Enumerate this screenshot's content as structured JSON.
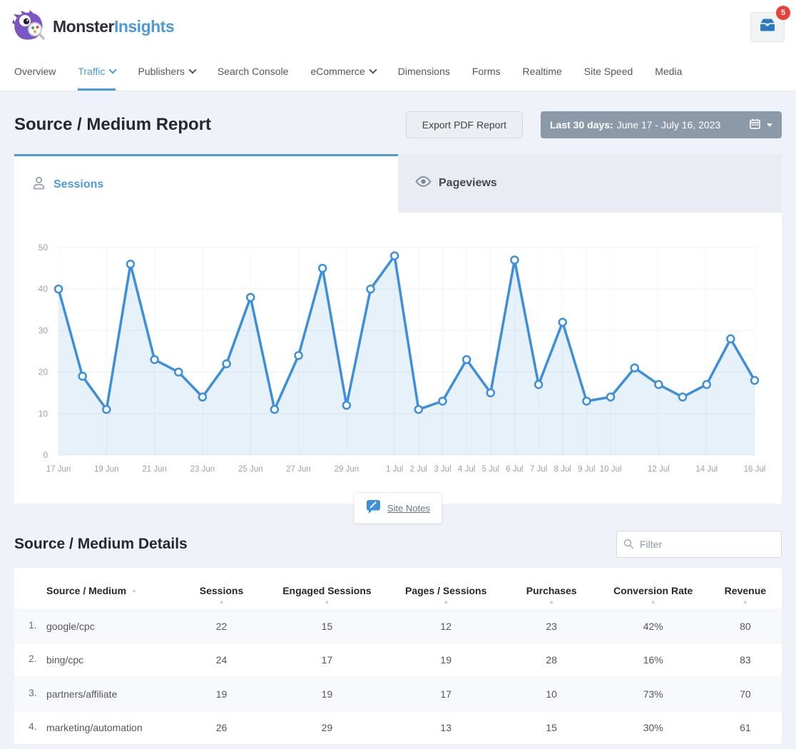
{
  "header": {
    "brand": {
      "monster": "Monster",
      "insights": "Insights"
    },
    "notifications": {
      "count": "5"
    }
  },
  "nav": {
    "items": [
      {
        "label": "Overview",
        "dropdown": false,
        "active": false
      },
      {
        "label": "Traffic",
        "dropdown": true,
        "active": true
      },
      {
        "label": "Publishers",
        "dropdown": true,
        "active": false
      },
      {
        "label": "Search Console",
        "dropdown": false,
        "active": false
      },
      {
        "label": "eCommerce",
        "dropdown": true,
        "active": false
      },
      {
        "label": "Dimensions",
        "dropdown": false,
        "active": false
      },
      {
        "label": "Forms",
        "dropdown": false,
        "active": false
      },
      {
        "label": "Realtime",
        "dropdown": false,
        "active": false
      },
      {
        "label": "Site Speed",
        "dropdown": false,
        "active": false
      },
      {
        "label": "Media",
        "dropdown": false,
        "active": false
      }
    ]
  },
  "report": {
    "title": "Source / Medium Report",
    "export_button": "Export PDF Report",
    "date_range": {
      "label": "Last 30 days:",
      "value": "June 17 - July 16, 2023"
    }
  },
  "tabs": [
    {
      "label": "Sessions",
      "icon": "user-icon",
      "active": true
    },
    {
      "label": "Pageviews",
      "icon": "eye-icon",
      "active": false
    }
  ],
  "chart_data": {
    "type": "line",
    "title": "Sessions",
    "x": [
      "17 Jun",
      "18 Jun",
      "19 Jun",
      "20 Jun",
      "21 Jun",
      "22 Jun",
      "23 Jun",
      "24 Jun",
      "25 Jun",
      "26 Jun",
      "27 Jun",
      "28 Jun",
      "29 Jun",
      "30 Jun",
      "1 Jul",
      "2 Jul",
      "3 Jul",
      "4 Jul",
      "5 Jul",
      "6 Jul",
      "7 Jul",
      "8 Jul",
      "9 Jul",
      "10 Jul",
      "11 Jul",
      "12 Jul",
      "13 Jul",
      "14 Jul",
      "15 Jul",
      "16 Jul"
    ],
    "series": [
      {
        "name": "Sessions",
        "values": [
          40,
          19,
          11,
          46,
          23,
          20,
          14,
          22,
          38,
          11,
          24,
          45,
          12,
          40,
          48,
          11,
          13,
          23,
          15,
          47,
          17,
          32,
          13,
          14,
          21,
          17,
          14,
          17,
          28,
          18
        ]
      }
    ],
    "x_tick_labels": [
      "17 Jun",
      "19 Jun",
      "21 Jun",
      "23 Jun",
      "25 Jun",
      "27 Jun",
      "29 Jun",
      "1 Jul",
      "2 Jul",
      "3 Jul",
      "4 Jul",
      "5 Jul",
      "6 Jul",
      "7 Jul",
      "8 Jul",
      "9 Jul",
      "10 Jul",
      "12 Jul",
      "14 Jul",
      "16 Jul"
    ],
    "y_ticks": [
      0,
      10,
      20,
      30,
      40,
      50
    ],
    "ylim": [
      0,
      50
    ],
    "grid": true,
    "legend": "none",
    "line_color": "#3d8fd9",
    "fill_color": "rgba(61,143,217,0.13)"
  },
  "site_notes": {
    "label": "Site Notes"
  },
  "details": {
    "title": "Source / Medium Details",
    "filter_placeholder": "Filter",
    "table": {
      "columns": [
        "Source / Medium",
        "Sessions",
        "Engaged Sessions",
        "Pages / Sessions",
        "Purchases",
        "Conversion Rate",
        "Revenue"
      ],
      "rows": [
        {
          "rank": "1.",
          "source": "google/cpc",
          "values": [
            "22",
            "15",
            "12",
            "23",
            "42%",
            "80"
          ]
        },
        {
          "rank": "2.",
          "source": "bing/cpc",
          "values": [
            "24",
            "17",
            "19",
            "28",
            "16%",
            "83"
          ]
        },
        {
          "rank": "3.",
          "source": "partners/affiliate",
          "values": [
            "19",
            "19",
            "17",
            "10",
            "73%",
            "70"
          ]
        },
        {
          "rank": "4.",
          "source": "marketing/automation",
          "values": [
            "26",
            "29",
            "13",
            "15",
            "30%",
            "61"
          ]
        }
      ]
    }
  },
  "colors": {
    "accent_blue": "#4b9ad9",
    "chart_line": "#3d8fd9",
    "badge_red": "#e84338",
    "date_button": "#8c99a8",
    "page_background": "#eff2f9"
  }
}
